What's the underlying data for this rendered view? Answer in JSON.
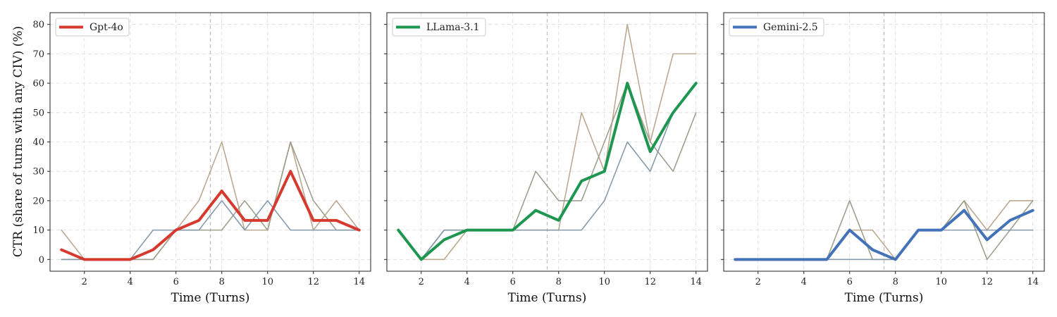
{
  "figure": {
    "ylabel": "CTR (share of turns with any CIV) (%)",
    "xlabel": "Time (Turns)"
  },
  "chart_data": [
    {
      "type": "line",
      "xlabel": "Time (Turns)",
      "ylabel": "CTR (share of turns with any CIV) (%)",
      "xlim": [
        0.5,
        14.5
      ],
      "ylim": [
        -4,
        84
      ],
      "xticks": [
        2,
        4,
        6,
        8,
        10,
        12,
        14
      ],
      "yticks": [
        0,
        10,
        20,
        30,
        40,
        50,
        60,
        70,
        80
      ],
      "grid": true,
      "legend_position": "top-left",
      "vertical_marker_x": 7.5,
      "x": [
        1,
        2,
        3,
        4,
        5,
        6,
        7,
        8,
        9,
        10,
        11,
        12,
        13,
        14
      ],
      "series": [
        {
          "name": "Gpt-4o",
          "color": "#d63a2f",
          "emphasis": true,
          "values": [
            3.3,
            0,
            0,
            0,
            3.3,
            10,
            13.3,
            23.3,
            13.3,
            13.3,
            30,
            13.3,
            13.3,
            10
          ]
        },
        {
          "color": "#b8a48c",
          "emphasis": false,
          "values": [
            10,
            0,
            0,
            0,
            0,
            10,
            20,
            40,
            10,
            10,
            40,
            10,
            20,
            10
          ]
        },
        {
          "color": "#9c9a88",
          "emphasis": false,
          "values": [
            0,
            0,
            0,
            0,
            0,
            10,
            10,
            10,
            20,
            10,
            40,
            20,
            10,
            10
          ]
        },
        {
          "color": "#7f97a8",
          "emphasis": false,
          "values": [
            0,
            0,
            0,
            0,
            10,
            10,
            10,
            20,
            10,
            20,
            10,
            10,
            10,
            10
          ]
        }
      ]
    },
    {
      "type": "line",
      "xlabel": "Time (Turns)",
      "ylabel": "",
      "xlim": [
        0.5,
        14.5
      ],
      "ylim": [
        -4,
        84
      ],
      "xticks": [
        2,
        4,
        6,
        8,
        10,
        12,
        14
      ],
      "yticks": [
        0,
        10,
        20,
        30,
        40,
        50,
        60,
        70,
        80
      ],
      "grid": true,
      "legend_position": "top-left",
      "vertical_marker_x": 7.5,
      "x": [
        1,
        2,
        3,
        4,
        5,
        6,
        7,
        8,
        9,
        10,
        11,
        12,
        13,
        14
      ],
      "series": [
        {
          "name": "LLama-3.1",
          "color": "#1e9650",
          "emphasis": true,
          "values": [
            10,
            0,
            6.7,
            10,
            10,
            10,
            16.7,
            13.3,
            26.7,
            30,
            60,
            36.7,
            50,
            60
          ]
        },
        {
          "color": "#b8a48c",
          "emphasis": false,
          "values": [
            10,
            0,
            0,
            10,
            10,
            10,
            10,
            10,
            50,
            30,
            80,
            40,
            70,
            70
          ]
        },
        {
          "color": "#9c9a88",
          "emphasis": false,
          "values": [
            10,
            0,
            10,
            10,
            10,
            10,
            30,
            20,
            20,
            40,
            60,
            40,
            30,
            50
          ]
        },
        {
          "color": "#7f97a8",
          "emphasis": false,
          "values": [
            10,
            0,
            10,
            10,
            10,
            10,
            10,
            10,
            10,
            20,
            40,
            30,
            50,
            60
          ]
        }
      ]
    },
    {
      "type": "line",
      "xlabel": "Time (Turns)",
      "ylabel": "",
      "xlim": [
        0.5,
        14.5
      ],
      "ylim": [
        -4,
        84
      ],
      "xticks": [
        2,
        4,
        6,
        8,
        10,
        12,
        14
      ],
      "yticks": [
        0,
        10,
        20,
        30,
        40,
        50,
        60,
        70,
        80
      ],
      "grid": true,
      "legend_position": "top-left",
      "vertical_marker_x": 7.5,
      "x": [
        1,
        2,
        3,
        4,
        5,
        6,
        7,
        8,
        9,
        10,
        11,
        12,
        13,
        14
      ],
      "series": [
        {
          "name": "Gemini-2.5",
          "color": "#4472b8",
          "emphasis": true,
          "values": [
            0,
            0,
            0,
            0,
            0,
            10,
            3.3,
            0,
            10,
            10,
            16.7,
            6.7,
            13.3,
            16.7
          ]
        },
        {
          "color": "#b8a48c",
          "emphasis": false,
          "values": [
            0,
            0,
            0,
            0,
            0,
            10,
            10,
            0,
            10,
            10,
            20,
            10,
            20,
            20
          ]
        },
        {
          "color": "#9c9a88",
          "emphasis": false,
          "values": [
            0,
            0,
            0,
            0,
            0,
            20,
            0,
            0,
            10,
            10,
            20,
            0,
            10,
            20
          ]
        },
        {
          "color": "#7f97a8",
          "emphasis": false,
          "values": [
            0,
            0,
            0,
            0,
            0,
            0,
            0,
            0,
            10,
            10,
            10,
            10,
            10,
            10
          ]
        }
      ]
    }
  ]
}
